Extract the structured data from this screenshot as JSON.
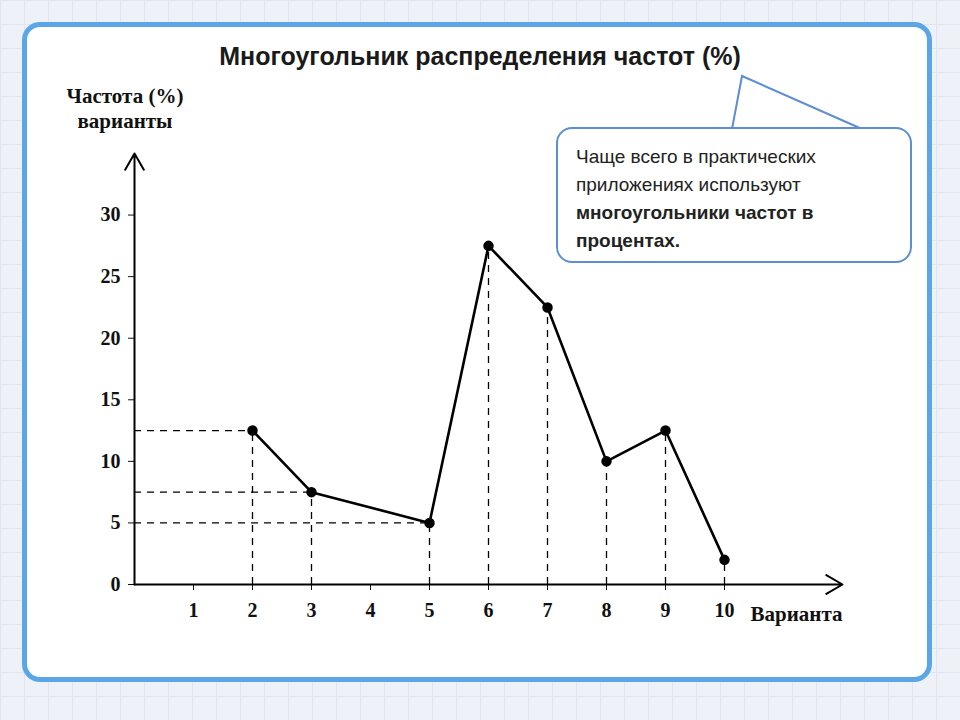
{
  "chart_data": {
    "type": "line",
    "title": "Многоугольник распределения частот (%)",
    "y_label": "Частота (%) варианты",
    "x_label": "Варианта",
    "x": [
      2,
      3,
      5,
      6,
      7,
      8,
      9,
      10
    ],
    "values": [
      12.5,
      7.5,
      5,
      27.5,
      22.5,
      10,
      12.5,
      2
    ],
    "color": "#000000",
    "marker": "dot",
    "line_style": "solid",
    "grid": false,
    "xlim": [
      0,
      12
    ],
    "xticks": [
      1,
      2,
      3,
      4,
      5,
      6,
      7,
      8,
      9,
      10
    ],
    "ylim": [
      0,
      35
    ],
    "yticks": [
      0,
      5,
      10,
      15,
      20,
      25,
      30
    ],
    "callout": {
      "text": "Чаще всего в практических приложениях используют",
      "bold": "многоугольники частот в процентах."
    }
  }
}
